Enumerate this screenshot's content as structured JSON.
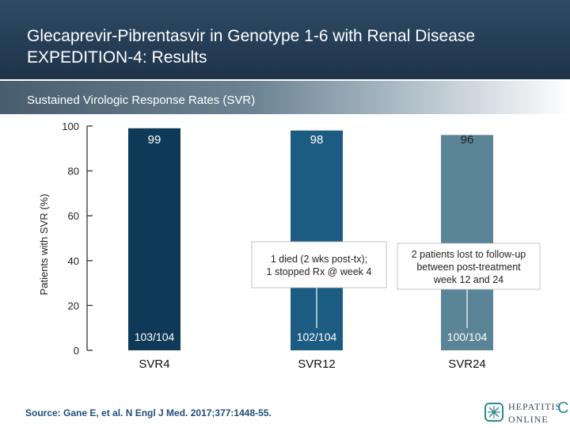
{
  "header": {
    "title_line1": "Glecaprevir-Pibrentasvir in Genotype 1-6 with Renal Disease",
    "title_line2": "EXPEDITION-4: Results"
  },
  "subtitle": "Sustained Virologic Response Rates (SVR)",
  "chart_data": {
    "type": "bar",
    "ylabel": "Patients with SVR (%)",
    "ylim": [
      0,
      100
    ],
    "yticks": [
      0,
      20,
      40,
      60,
      80,
      100
    ],
    "categories": [
      "SVR4",
      "SVR12",
      "SVR24"
    ],
    "values": [
      99,
      98,
      96
    ],
    "value_labels": [
      "99",
      "98",
      "96"
    ],
    "counts": [
      "103/104",
      "102/104",
      "100/104"
    ],
    "bar_colors": [
      "#0f3a57",
      "#1c5b82",
      "#5b8596"
    ],
    "annotations": [
      {
        "bar": 1,
        "lines": [
          "1 died (2 wks post-tx);",
          "1 stopped Rx @ week 4"
        ]
      },
      {
        "bar": 2,
        "lines": [
          "2 patients lost to follow-up",
          "between post-treatment",
          "week 12 and 24"
        ]
      }
    ],
    "grid": false
  },
  "source": "Source: Gane E, et al. N Engl J Med. 2017;377:1448-55.",
  "logo": {
    "line1": "HEPATITIS",
    "line2": "ONLINE",
    "letter": "C"
  }
}
